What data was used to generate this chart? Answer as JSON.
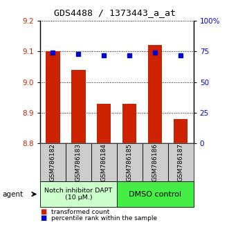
{
  "title": "GDS4488 / 1373443_a_at",
  "categories": [
    "GSM786182",
    "GSM786183",
    "GSM786184",
    "GSM786185",
    "GSM786186",
    "GSM786187"
  ],
  "bar_values": [
    9.1,
    9.04,
    8.93,
    8.93,
    9.12,
    8.88
  ],
  "percentile_values": [
    74,
    73,
    72,
    72,
    74,
    72
  ],
  "ylim_left": [
    8.8,
    9.2
  ],
  "ylim_right": [
    0,
    100
  ],
  "yticks_left": [
    8.8,
    8.9,
    9.0,
    9.1,
    9.2
  ],
  "yticks_right": [
    0,
    25,
    50,
    75,
    100
  ],
  "bar_color": "#cc2200",
  "dot_color": "#0000cc",
  "group1_label": "Notch inhibitor DAPT\n(10 μM.)",
  "group2_label": "DMSO control",
  "group1_color": "#ccffcc",
  "group2_color": "#44ee44",
  "agent_label": "agent",
  "legend1": "transformed count",
  "legend2": "percentile rank within the sample",
  "left_tick_color": "#cc2200",
  "right_tick_color": "#0000cc",
  "title_fontsize": 9.5,
  "tick_fontsize": 7.5,
  "bar_width": 0.55,
  "xtick_bg_color": "#cccccc"
}
